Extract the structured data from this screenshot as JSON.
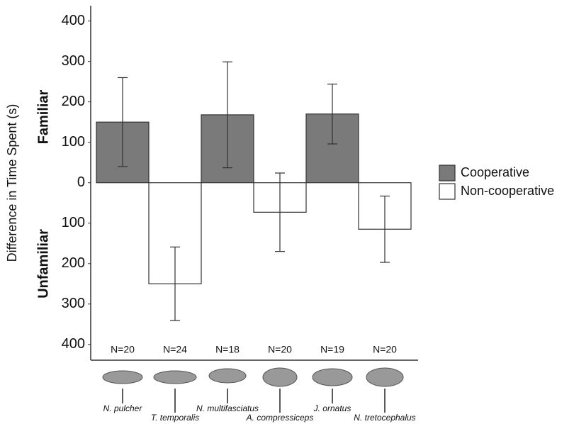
{
  "chart_data": {
    "type": "bar",
    "y_label": "Difference in Time Spent (s)",
    "annotations": [
      "Familiar",
      "Unfamiliar"
    ],
    "categories": [
      "N. pulcher",
      "T. temporalis",
      "N. multifasciatus",
      "A. compressiceps",
      "J. ornatus",
      "N. tretocephalus"
    ],
    "sample_sizes": [
      "N=20",
      "N=24",
      "N=18",
      "N=20",
      "N=19",
      "N=20"
    ],
    "series": [
      {
        "name": "Cooperative",
        "color": "#7a7a7a",
        "label_color": "#2b3990",
        "values": [
          150,
          null,
          168,
          null,
          170,
          null
        ],
        "errors": [
          110,
          null,
          131,
          null,
          74,
          null
        ]
      },
      {
        "name": "Non-cooperative",
        "color": "#ffffff",
        "label_color": "#f15a24",
        "values": [
          null,
          -250,
          null,
          -73,
          null,
          -115
        ],
        "errors": [
          null,
          91,
          null,
          97,
          null,
          82
        ]
      }
    ],
    "ylim": [
      -432,
      438
    ],
    "yticks": [
      {
        "value": -400,
        "label": "400"
      },
      {
        "value": -300,
        "label": "300"
      },
      {
        "value": -200,
        "label": "200"
      },
      {
        "value": -100,
        "label": "100"
      },
      0,
      100,
      200,
      300,
      400
    ]
  }
}
